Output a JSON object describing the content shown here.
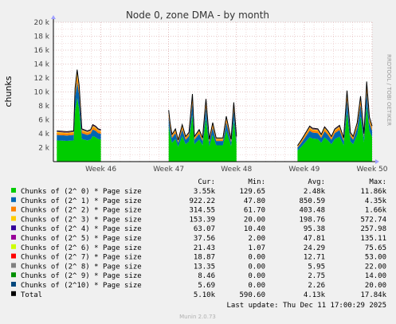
{
  "title": "Node 0, zone DMA - by month",
  "side_label": "RRDTOOL / TOBI OETIKER",
  "footer": "Munin 2.0.73",
  "last_update": "Last update: Thu Dec 11 17:00:29 2025",
  "colors": {
    "background": "#f0f0f0",
    "plot_bg": "#ffffff",
    "grid_minor": "#e8c0c0",
    "grid_major": "#d09090",
    "axis": "#000000"
  },
  "chart_data": {
    "type": "area",
    "stacked": true,
    "ylabel": "chunks",
    "ylim": [
      0,
      20000
    ],
    "y_ticks": [
      2000,
      4000,
      6000,
      8000,
      10000,
      12000,
      14000,
      16000,
      18000,
      20000
    ],
    "y_tick_labels": [
      "2 k",
      "4 k",
      "6 k",
      "8 k",
      "10 k",
      "12 k",
      "14 k",
      "16 k",
      "18 k",
      "20 k"
    ],
    "x_range_weeks": [
      45.3,
      50.0
    ],
    "x_ticks": [
      46,
      47,
      48,
      49,
      50
    ],
    "x_tick_labels": [
      "Week 46",
      "Week 47",
      "Week 48",
      "Week 49",
      "Week 50"
    ],
    "x": [
      45.35,
      45.5,
      45.6,
      45.62,
      45.65,
      45.68,
      45.72,
      45.8,
      45.85,
      45.88,
      45.92,
      45.96,
      46.0,
      47.0,
      47.02,
      47.05,
      47.1,
      47.14,
      47.2,
      47.25,
      47.3,
      47.35,
      47.38,
      47.45,
      47.5,
      47.55,
      47.6,
      47.65,
      47.7,
      47.75,
      47.8,
      47.85,
      47.92,
      47.96,
      48.0,
      48.9,
      48.95,
      49.0,
      49.08,
      49.12,
      49.2,
      49.25,
      49.3,
      49.35,
      49.4,
      49.45,
      49.52,
      49.58,
      49.63,
      49.68,
      49.72,
      49.78,
      49.83,
      49.88,
      49.92,
      49.96,
      50.0
    ],
    "totals": [
      4400,
      4300,
      4400,
      10500,
      13200,
      11000,
      4700,
      4400,
      4600,
      5300,
      5100,
      4700,
      4600,
      7400,
      5600,
      3900,
      4700,
      3100,
      5300,
      3600,
      4200,
      9700,
      3600,
      4600,
      3400,
      9000,
      3200,
      5600,
      3400,
      3400,
      3400,
      6500,
      3200,
      8500,
      3600,
      2300,
      3000,
      3800,
      5100,
      4800,
      4700,
      3900,
      5000,
      4400,
      3600,
      4700,
      5200,
      3400,
      10200,
      4200,
      3600,
      5600,
      9400,
      4000,
      11500,
      6400,
      5100
    ],
    "gaps_after_index": [
      12,
      34
    ],
    "series": [
      {
        "name": "Chunks of (2^ 0) * Page size",
        "color": "#00cc00",
        "cur": "3.55k",
        "min": "129.65",
        "avg": "2.48k",
        "max": "11.86k",
        "share": 0.69
      },
      {
        "name": "Chunks of (2^ 1) * Page size",
        "color": "#0066b3",
        "cur": "922.22",
        "min": "47.80",
        "avg": "850.59",
        "max": "4.35k",
        "share": 0.18
      },
      {
        "name": "Chunks of (2^ 2) * Page size",
        "color": "#ff8000",
        "cur": "314.55",
        "min": "61.70",
        "avg": "403.48",
        "max": "1.66k",
        "share": 0.065
      },
      {
        "name": "Chunks of (2^ 3) * Page size",
        "color": "#ffcc00",
        "cur": "153.39",
        "min": "20.00",
        "avg": "198.76",
        "max": "572.74",
        "share": 0.03
      },
      {
        "name": "Chunks of (2^ 4) * Page size",
        "color": "#330099",
        "cur": "63.07",
        "min": "10.40",
        "avg": "95.38",
        "max": "257.98",
        "share": 0.013
      },
      {
        "name": "Chunks of (2^ 5) * Page size",
        "color": "#990099",
        "cur": "37.56",
        "min": "2.00",
        "avg": "47.81",
        "max": "135.11",
        "share": 0.007
      },
      {
        "name": "Chunks of (2^ 6) * Page size",
        "color": "#ccff00",
        "cur": "21.43",
        "min": "1.07",
        "avg": "24.29",
        "max": "75.65",
        "share": 0.005
      },
      {
        "name": "Chunks of (2^ 7) * Page size",
        "color": "#ff0000",
        "cur": "18.87",
        "min": "0.00",
        "avg": "12.71",
        "max": "53.00",
        "share": 0.003
      },
      {
        "name": "Chunks of (2^ 8) * Page size",
        "color": "#808080",
        "cur": "13.35",
        "min": "0.00",
        "avg": "5.95",
        "max": "22.00",
        "share": 0.002
      },
      {
        "name": "Chunks of (2^ 9) * Page size",
        "color": "#008f00",
        "cur": "8.46",
        "min": "0.00",
        "avg": "2.75",
        "max": "14.00",
        "share": 0.001
      },
      {
        "name": "Chunks of (2^10) * Page size",
        "color": "#00487d",
        "cur": "5.69",
        "min": "0.00",
        "avg": "2.26",
        "max": "20.00",
        "share": 0.001
      }
    ],
    "total": {
      "name": "Total",
      "color": "#000000",
      "cur": "5.10k",
      "min": "590.60",
      "avg": "4.13k",
      "max": "17.84k"
    },
    "legend_headers": {
      "cur": "Cur:",
      "min": "Min:",
      "avg": "Avg:",
      "max": "Max:"
    }
  }
}
